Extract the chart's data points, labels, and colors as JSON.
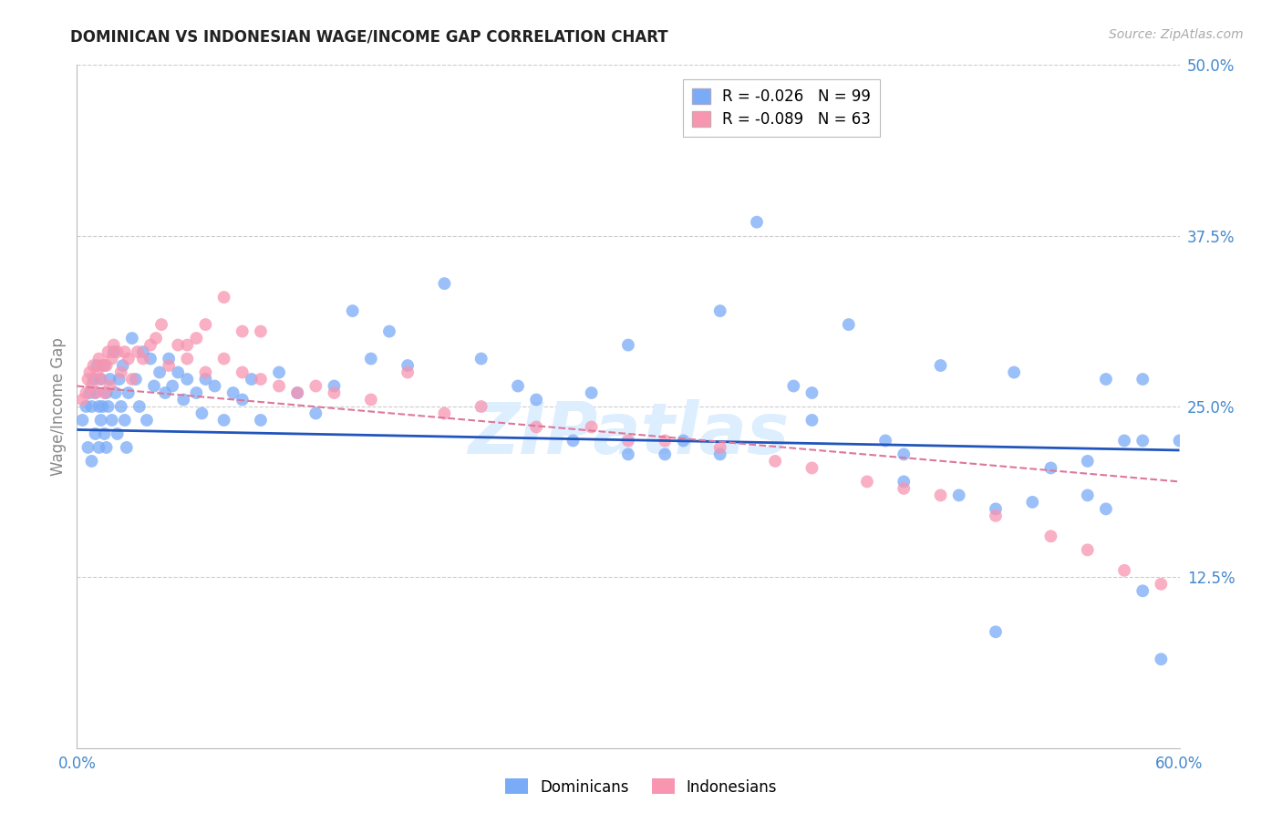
{
  "title": "DOMINICAN VS INDONESIAN WAGE/INCOME GAP CORRELATION CHART",
  "source": "Source: ZipAtlas.com",
  "ylabel": "Wage/Income Gap",
  "xmin": 0.0,
  "xmax": 0.6,
  "ymin": 0.0,
  "ymax": 0.5,
  "yticks": [
    0.0,
    0.125,
    0.25,
    0.375,
    0.5
  ],
  "ytick_labels": [
    "",
    "12.5%",
    "25.0%",
    "37.5%",
    "50.0%"
  ],
  "xticks": [
    0.0,
    0.1,
    0.2,
    0.3,
    0.4,
    0.5,
    0.6
  ],
  "xtick_labels": [
    "0.0%",
    "",
    "",
    "",
    "",
    "",
    "60.0%"
  ],
  "dominicans_R": -0.026,
  "dominicans_N": 99,
  "indonesians_R": -0.089,
  "indonesians_N": 63,
  "dominican_color": "#7aabf7",
  "indonesian_color": "#f895b0",
  "trend_dominican_color": "#2255bb",
  "trend_indonesian_color": "#dd7799",
  "watermark": "ZIPatlas",
  "watermark_color": "#ddeeff",
  "dom_trend_x0": 0.0,
  "dom_trend_y0": 0.233,
  "dom_trend_x1": 0.6,
  "dom_trend_y1": 0.218,
  "ind_trend_x0": 0.0,
  "ind_trend_y0": 0.265,
  "ind_trend_x1": 0.6,
  "ind_trend_y1": 0.195,
  "dominicans_x": [
    0.003,
    0.005,
    0.006,
    0.007,
    0.008,
    0.008,
    0.009,
    0.01,
    0.01,
    0.011,
    0.012,
    0.012,
    0.013,
    0.013,
    0.014,
    0.015,
    0.015,
    0.016,
    0.016,
    0.017,
    0.018,
    0.019,
    0.02,
    0.021,
    0.022,
    0.023,
    0.024,
    0.025,
    0.026,
    0.027,
    0.028,
    0.03,
    0.032,
    0.034,
    0.036,
    0.038,
    0.04,
    0.042,
    0.045,
    0.048,
    0.05,
    0.052,
    0.055,
    0.058,
    0.06,
    0.065,
    0.068,
    0.07,
    0.075,
    0.08,
    0.085,
    0.09,
    0.095,
    0.1,
    0.11,
    0.12,
    0.13,
    0.14,
    0.15,
    0.16,
    0.17,
    0.18,
    0.2,
    0.22,
    0.24,
    0.25,
    0.27,
    0.28,
    0.3,
    0.32,
    0.33,
    0.35,
    0.37,
    0.39,
    0.4,
    0.42,
    0.44,
    0.47,
    0.5,
    0.51,
    0.53,
    0.55,
    0.56,
    0.58,
    0.3,
    0.35,
    0.4,
    0.45,
    0.5,
    0.55,
    0.58,
    0.45,
    0.48,
    0.52,
    0.56,
    0.58,
    0.6,
    0.59,
    0.57
  ],
  "dominicans_y": [
    0.24,
    0.25,
    0.22,
    0.26,
    0.25,
    0.21,
    0.27,
    0.26,
    0.23,
    0.28,
    0.25,
    0.22,
    0.27,
    0.24,
    0.25,
    0.28,
    0.23,
    0.26,
    0.22,
    0.25,
    0.27,
    0.24,
    0.29,
    0.26,
    0.23,
    0.27,
    0.25,
    0.28,
    0.24,
    0.22,
    0.26,
    0.3,
    0.27,
    0.25,
    0.29,
    0.24,
    0.285,
    0.265,
    0.275,
    0.26,
    0.285,
    0.265,
    0.275,
    0.255,
    0.27,
    0.26,
    0.245,
    0.27,
    0.265,
    0.24,
    0.26,
    0.255,
    0.27,
    0.24,
    0.275,
    0.26,
    0.245,
    0.265,
    0.32,
    0.285,
    0.305,
    0.28,
    0.34,
    0.285,
    0.265,
    0.255,
    0.225,
    0.26,
    0.295,
    0.215,
    0.225,
    0.32,
    0.385,
    0.265,
    0.24,
    0.31,
    0.225,
    0.28,
    0.085,
    0.275,
    0.205,
    0.185,
    0.27,
    0.225,
    0.215,
    0.215,
    0.26,
    0.195,
    0.175,
    0.21,
    0.27,
    0.215,
    0.185,
    0.18,
    0.175,
    0.115,
    0.225,
    0.065,
    0.225
  ],
  "indonesians_x": [
    0.003,
    0.005,
    0.006,
    0.007,
    0.008,
    0.009,
    0.01,
    0.011,
    0.012,
    0.013,
    0.014,
    0.015,
    0.016,
    0.017,
    0.018,
    0.019,
    0.02,
    0.022,
    0.024,
    0.026,
    0.028,
    0.03,
    0.033,
    0.036,
    0.04,
    0.043,
    0.046,
    0.05,
    0.055,
    0.06,
    0.065,
    0.07,
    0.08,
    0.09,
    0.1,
    0.11,
    0.12,
    0.13,
    0.14,
    0.16,
    0.18,
    0.2,
    0.22,
    0.25,
    0.28,
    0.3,
    0.32,
    0.35,
    0.38,
    0.4,
    0.43,
    0.45,
    0.47,
    0.5,
    0.53,
    0.55,
    0.57,
    0.59,
    0.06,
    0.07,
    0.08,
    0.09,
    0.1
  ],
  "indonesians_y": [
    0.255,
    0.26,
    0.27,
    0.275,
    0.265,
    0.28,
    0.26,
    0.275,
    0.285,
    0.27,
    0.28,
    0.26,
    0.28,
    0.29,
    0.265,
    0.285,
    0.295,
    0.29,
    0.275,
    0.29,
    0.285,
    0.27,
    0.29,
    0.285,
    0.295,
    0.3,
    0.31,
    0.28,
    0.295,
    0.285,
    0.3,
    0.275,
    0.285,
    0.275,
    0.27,
    0.265,
    0.26,
    0.265,
    0.26,
    0.255,
    0.275,
    0.245,
    0.25,
    0.235,
    0.235,
    0.225,
    0.225,
    0.22,
    0.21,
    0.205,
    0.195,
    0.19,
    0.185,
    0.17,
    0.155,
    0.145,
    0.13,
    0.12,
    0.295,
    0.31,
    0.33,
    0.305,
    0.305
  ]
}
